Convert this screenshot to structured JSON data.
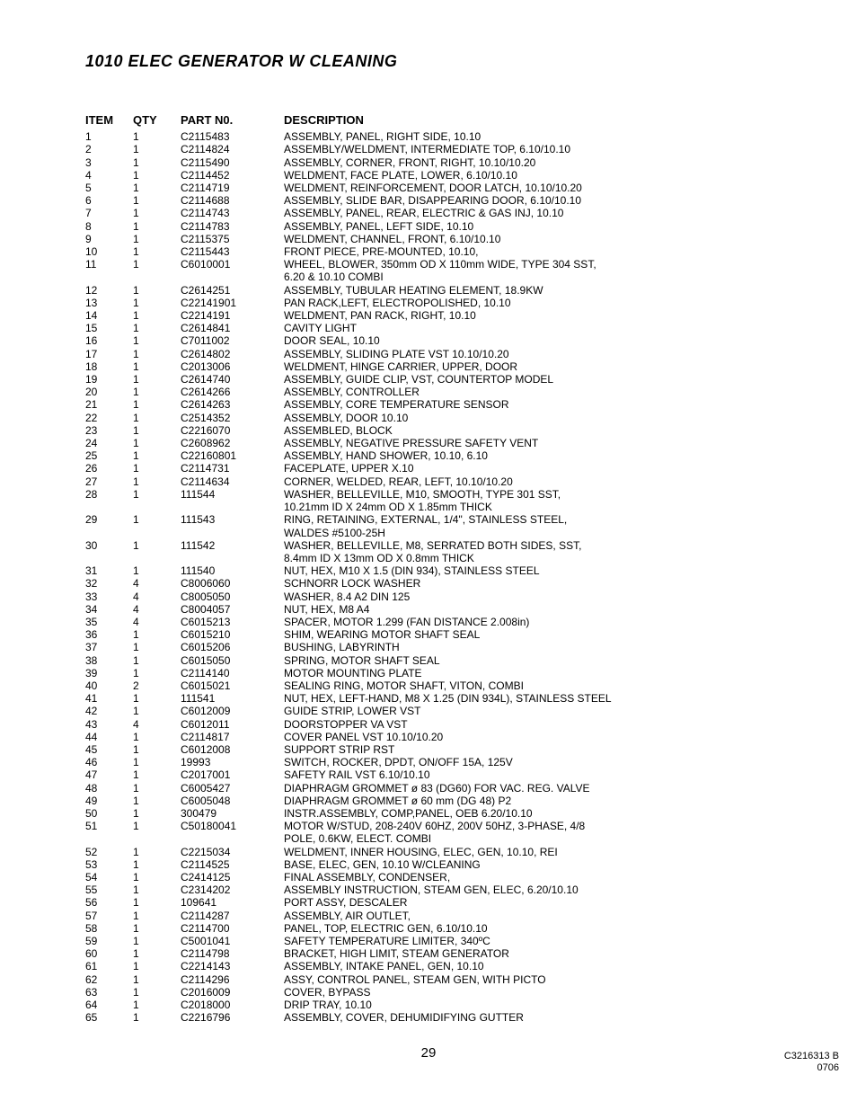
{
  "title": "1010 ELEC GENERATOR W CLEANING",
  "page_number": "29",
  "doc_id_line1": "C3216313 B",
  "doc_id_line2": "0706",
  "headers": {
    "item": "ITEM",
    "qty": "QTY",
    "part": "PART N0.",
    "desc": "DESCRIPTION"
  },
  "rows": [
    {
      "item": "1",
      "qty": "1",
      "part": "C2115483",
      "desc": "ASSEMBLY, PANEL, RIGHT SIDE, 10.10"
    },
    {
      "item": "2",
      "qty": "1",
      "part": "C2114824",
      "desc": "ASSEMBLY/WELDMENT, INTERMEDIATE TOP, 6.10/10.10"
    },
    {
      "item": "3",
      "qty": "1",
      "part": "C2115490",
      "desc": "ASSEMBLY, CORNER, FRONT, RIGHT, 10.10/10.20"
    },
    {
      "item": "4",
      "qty": "1",
      "part": "C2114452",
      "desc": "WELDMENT, FACE PLATE, LOWER, 6.10/10.10"
    },
    {
      "item": "5",
      "qty": "1",
      "part": "C2114719",
      "desc": "WELDMENT, REINFORCEMENT, DOOR LATCH, 10.10/10.20"
    },
    {
      "item": "6",
      "qty": "1",
      "part": "C2114688",
      "desc": "ASSEMBLY, SLIDE BAR, DISAPPEARING DOOR, 6.10/10.10"
    },
    {
      "item": "7",
      "qty": "1",
      "part": "C2114743",
      "desc": "ASSEMBLY, PANEL, REAR, ELECTRIC & GAS INJ, 10.10"
    },
    {
      "item": "8",
      "qty": "1",
      "part": "C2114783",
      "desc": "ASSEMBLY, PANEL, LEFT SIDE, 10.10"
    },
    {
      "item": "9",
      "qty": "1",
      "part": "C2115375",
      "desc": "WELDMENT, CHANNEL, FRONT, 6.10/10.10"
    },
    {
      "item": "10",
      "qty": "1",
      "part": "C2115443",
      "desc": "FRONT PIECE, PRE-MOUNTED, 10.10,"
    },
    {
      "item": "11",
      "qty": "1",
      "part": "C6010001",
      "desc": "WHEEL, BLOWER, 350mm OD X 110mm WIDE, TYPE 304 SST,"
    },
    {
      "cont": true,
      "desc": "6.20 & 10.10 COMBI"
    },
    {
      "item": "12",
      "qty": "1",
      "part": "C2614251",
      "desc": "ASSEMBLY, TUBULAR HEATING ELEMENT, 18.9KW"
    },
    {
      "item": "13",
      "qty": "1",
      "part": "C22141901",
      "desc": "PAN RACK,LEFT, ELECTROPOLISHED, 10.10"
    },
    {
      "item": "14",
      "qty": "1",
      "part": "C2214191",
      "desc": "WELDMENT, PAN RACK, RIGHT, 10.10"
    },
    {
      "item": "15",
      "qty": "1",
      "part": "C2614841",
      "desc": "CAVITY LIGHT"
    },
    {
      "item": "16",
      "qty": "1",
      "part": "C7011002",
      "desc": "DOOR SEAL, 10.10"
    },
    {
      "item": "17",
      "qty": "1",
      "part": "C2614802",
      "desc": "ASSEMBLY, SLIDING PLATE VST 10.10/10.20"
    },
    {
      "item": "18",
      "qty": "1",
      "part": "C2013006",
      "desc": "WELDMENT, HINGE CARRIER, UPPER, DOOR"
    },
    {
      "item": "19",
      "qty": "1",
      "part": "C2614740",
      "desc": "ASSEMBLY, GUIDE CLIP, VST, COUNTERTOP MODEL"
    },
    {
      "item": "20",
      "qty": "1",
      "part": "C2614266",
      "desc": "ASSEMBLY, CONTROLLER"
    },
    {
      "item": "21",
      "qty": "1",
      "part": "C2614263",
      "desc": "ASSEMBLY, CORE TEMPERATURE SENSOR"
    },
    {
      "item": "22",
      "qty": "1",
      "part": "C2514352",
      "desc": "ASSEMBLY, DOOR 10.10"
    },
    {
      "item": "23",
      "qty": "1",
      "part": "C2216070",
      "desc": "ASSEMBLED, BLOCK"
    },
    {
      "item": "24",
      "qty": "1",
      "part": "C2608962",
      "desc": "ASSEMBLY, NEGATIVE PRESSURE SAFETY VENT"
    },
    {
      "item": "25",
      "qty": "1",
      "part": "C22160801",
      "desc": "ASSEMBLY, HAND SHOWER, 10.10, 6.10"
    },
    {
      "item": "26",
      "qty": "1",
      "part": "C2114731",
      "desc": "FACEPLATE, UPPER X.10"
    },
    {
      "item": "27",
      "qty": "1",
      "part": "C2114634",
      "desc": "CORNER, WELDED, REAR, LEFT, 10.10/10.20"
    },
    {
      "item": "28",
      "qty": "1",
      "part": "111544",
      "desc": "WASHER, BELLEVILLE, M10, SMOOTH, TYPE 301 SST,"
    },
    {
      "cont": true,
      "desc": "10.21mm ID X 24mm OD X 1.85mm THICK"
    },
    {
      "item": "29",
      "qty": "1",
      "part": "111543",
      "desc": "RING, RETAINING, EXTERNAL, 1/4\", STAINLESS STEEL,"
    },
    {
      "cont": true,
      "desc": "WALDES #5100-25H"
    },
    {
      "item": "30",
      "qty": "1",
      "part": "111542",
      "desc": "WASHER, BELLEVILLE, M8, SERRATED BOTH SIDES, SST,"
    },
    {
      "cont": true,
      "desc": "8.4mm ID X 13mm OD X 0.8mm THICK"
    },
    {
      "item": "31",
      "qty": "1",
      "part": "111540",
      "desc": "NUT, HEX, M10 X 1.5 (DIN 934), STAINLESS STEEL"
    },
    {
      "item": "32",
      "qty": "4",
      "part": "C8006060",
      "desc": "SCHNORR LOCK WASHER"
    },
    {
      "item": "33",
      "qty": "4",
      "part": "C8005050",
      "desc": "WASHER, 8.4 A2 DIN 125"
    },
    {
      "item": "34",
      "qty": "4",
      "part": "C8004057",
      "desc": "NUT, HEX, M8 A4"
    },
    {
      "item": "35",
      "qty": "4",
      "part": "C6015213",
      "desc": "SPACER, MOTOR 1.299 (FAN DISTANCE 2.008in)"
    },
    {
      "item": "36",
      "qty": "1",
      "part": "C6015210",
      "desc": "SHIM, WEARING MOTOR SHAFT SEAL"
    },
    {
      "item": "37",
      "qty": "1",
      "part": "C6015206",
      "desc": "BUSHING, LABYRINTH"
    },
    {
      "item": "38",
      "qty": "1",
      "part": "C6015050",
      "desc": "SPRING, MOTOR SHAFT SEAL"
    },
    {
      "item": "39",
      "qty": "1",
      "part": "C2114140",
      "desc": "MOTOR MOUNTING PLATE"
    },
    {
      "item": "40",
      "qty": "2",
      "part": "C6015021",
      "desc": "SEALING RING, MOTOR SHAFT, VITON, COMBI"
    },
    {
      "item": "41",
      "qty": "1",
      "part": "111541",
      "desc": "NUT, HEX, LEFT-HAND, M8 X 1.25 (DIN 934L), STAINLESS STEEL"
    },
    {
      "item": "42",
      "qty": "1",
      "part": "C6012009",
      "desc": "GUIDE STRIP, LOWER VST"
    },
    {
      "item": "43",
      "qty": "4",
      "part": "C6012011",
      "desc": "DOORSTOPPER VA VST"
    },
    {
      "item": "44",
      "qty": "1",
      "part": "C2114817",
      "desc": "COVER PANEL VST 10.10/10.20"
    },
    {
      "item": "45",
      "qty": "1",
      "part": "C6012008",
      "desc": "SUPPORT STRIP RST"
    },
    {
      "item": "46",
      "qty": "1",
      "part": "19993",
      "desc": "SWITCH, ROCKER, DPDT, ON/OFF 15A, 125V"
    },
    {
      "item": "47",
      "qty": "1",
      "part": "C2017001",
      "desc": "SAFETY RAIL VST 6.10/10.10"
    },
    {
      "item": "48",
      "qty": "1",
      "part": "C6005427",
      "desc": "DIAPHRAGM GROMMET ø 83 (DG60) FOR VAC. REG. VALVE"
    },
    {
      "item": "49",
      "qty": "1",
      "part": "C6005048",
      "desc": "DIAPHRAGM GROMMET ø 60 mm (DG 48) P2"
    },
    {
      "item": "50",
      "qty": "1",
      "part": "300479",
      "desc": "INSTR.ASSEMBLY, COMP,PANEL, OEB 6.20/10.10"
    },
    {
      "item": "51",
      "qty": "1",
      "part": "C50180041",
      "desc": "MOTOR W/STUD, 208-240V 60HZ, 200V 50HZ, 3-PHASE, 4/8"
    },
    {
      "cont": true,
      "desc": "POLE, 0.6KW, ELECT. COMBI"
    },
    {
      "item": "52",
      "qty": "1",
      "part": "C2215034",
      "desc": "WELDMENT, INNER HOUSING, ELEC, GEN, 10.10, REI"
    },
    {
      "item": "53",
      "qty": "1",
      "part": "C2114525",
      "desc": "BASE, ELEC, GEN, 10.10 W/CLEANING"
    },
    {
      "item": "54",
      "qty": "1",
      "part": "C2414125",
      "desc": "FINAL ASSEMBLY, CONDENSER,"
    },
    {
      "item": "55",
      "qty": "1",
      "part": "C2314202",
      "desc": "ASSEMBLY INSTRUCTION, STEAM GEN, ELEC, 6.20/10.10"
    },
    {
      "item": "56",
      "qty": "1",
      "part": "109641",
      "desc": "PORT ASSY, DESCALER"
    },
    {
      "item": "57",
      "qty": "1",
      "part": "C2114287",
      "desc": "ASSEMBLY, AIR OUTLET,"
    },
    {
      "item": "58",
      "qty": "1",
      "part": "C2114700",
      "desc": "PANEL, TOP, ELECTRIC GEN, 6.10/10.10"
    },
    {
      "item": "59",
      "qty": "1",
      "part": "C5001041",
      "desc": "SAFETY TEMPERATURE LIMITER, 340ºC"
    },
    {
      "item": "60",
      "qty": "1",
      "part": "C2114798",
      "desc": "BRACKET, HIGH LIMIT, STEAM GENERATOR"
    },
    {
      "item": "61",
      "qty": "1",
      "part": "C2214143",
      "desc": "ASSEMBLY, INTAKE PANEL, GEN, 10.10"
    },
    {
      "item": "62",
      "qty": "1",
      "part": "C2114296",
      "desc": "ASSY, CONTROL PANEL, STEAM GEN, WITH PICTO"
    },
    {
      "item": "63",
      "qty": "1",
      "part": "C2016009",
      "desc": "COVER, BYPASS"
    },
    {
      "item": "64",
      "qty": "1",
      "part": "C2018000",
      "desc": "DRIP TRAY, 10.10"
    },
    {
      "item": "65",
      "qty": "1",
      "part": "C2216796",
      "desc": "ASSEMBLY, COVER, DEHUMIDIFYING GUTTER"
    }
  ]
}
